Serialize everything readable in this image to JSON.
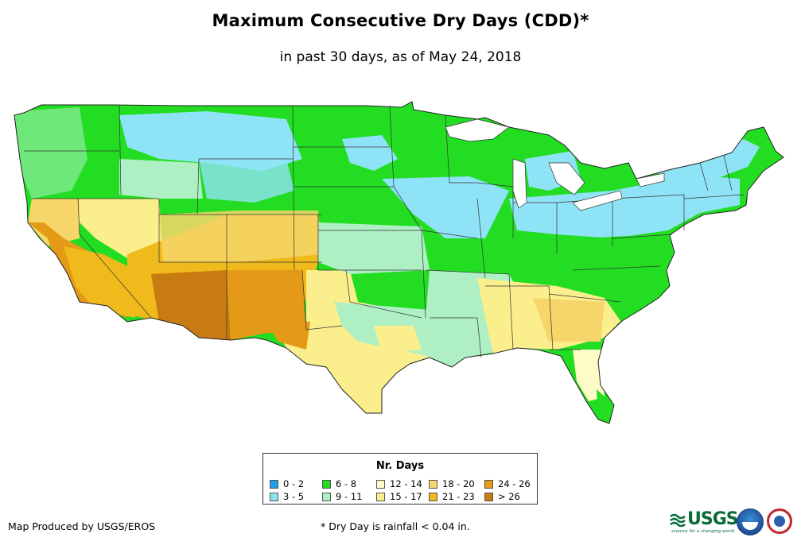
{
  "title": "Maximum Consecutive Dry Days (CDD)*",
  "subtitle": "in past 30 days, as of May 24, 2018",
  "legend": {
    "title": "Nr. Days",
    "items": [
      {
        "label": "0 - 2",
        "color": "#1ea0ea"
      },
      {
        "label": "3 - 5",
        "color": "#8fe3f6"
      },
      {
        "label": "6 - 8",
        "color": "#22dd22"
      },
      {
        "label": "9 - 11",
        "color": "#aef0c4"
      },
      {
        "label": "12 - 14",
        "color": "#fffbc6"
      },
      {
        "label": "15 - 17",
        "color": "#fbee8c"
      },
      {
        "label": "18 - 20",
        "color": "#f6d66a"
      },
      {
        "label": "21 - 23",
        "color": "#f0b91c"
      },
      {
        "label": "24 - 26",
        "color": "#e49a16"
      },
      {
        "label": "> 26",
        "color": "#c87b10"
      }
    ]
  },
  "footer": {
    "producer": "Map Produced by USGS/EROS",
    "note": "* Dry Day is rainfall < 0.04 in."
  },
  "logos": {
    "usgs": "USGS",
    "usgs_tagline": "science for a changing world",
    "noaa": "noaa-logo",
    "nws": "nws-logo"
  },
  "map": {
    "region": "Contiguous United States"
  }
}
